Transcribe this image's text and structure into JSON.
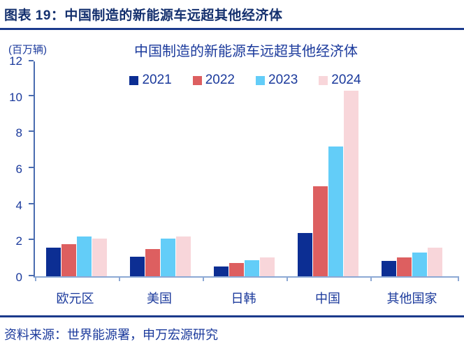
{
  "header": {
    "title": "图表 19：中国制造的新能源车远超其他经济体"
  },
  "chart": {
    "unit": "(百万辆)",
    "title": "中国制造的新能源车远超其他经济体"
  },
  "chart_data": {
    "type": "bar",
    "title": "中国制造的新能源车远超其他经济体",
    "unit_label": "(百万辆)",
    "categories": [
      "欧元区",
      "美国",
      "日韩",
      "中国",
      "其他国家"
    ],
    "series": [
      {
        "name": "2021",
        "color": "#0c2e93",
        "values": [
          1.6,
          1.1,
          0.55,
          2.4,
          0.85
        ]
      },
      {
        "name": "2022",
        "color": "#dd5f60",
        "values": [
          1.8,
          1.5,
          0.75,
          5.0,
          1.05
        ]
      },
      {
        "name": "2023",
        "color": "#63cdf8",
        "values": [
          2.2,
          2.1,
          0.9,
          7.2,
          1.3
        ]
      },
      {
        "name": "2024",
        "color": "#f8d6da",
        "values": [
          2.1,
          2.2,
          1.05,
          10.3,
          1.6
        ]
      }
    ],
    "ylim": [
      0,
      12
    ],
    "yticks": [
      0,
      2,
      4,
      6,
      8,
      10,
      12
    ],
    "legend_position": "top-center",
    "grid": false
  },
  "footer": {
    "source": "资料来源：世界能源署，申万宏源研究"
  },
  "colors": {
    "navy_dark": "#14306e",
    "navy_line": "#1b3a8c",
    "navy_text": "#1b3a9c",
    "axis": "#4a6cb0",
    "baseline": "#8ca8d4",
    "background": "#ffffff"
  }
}
